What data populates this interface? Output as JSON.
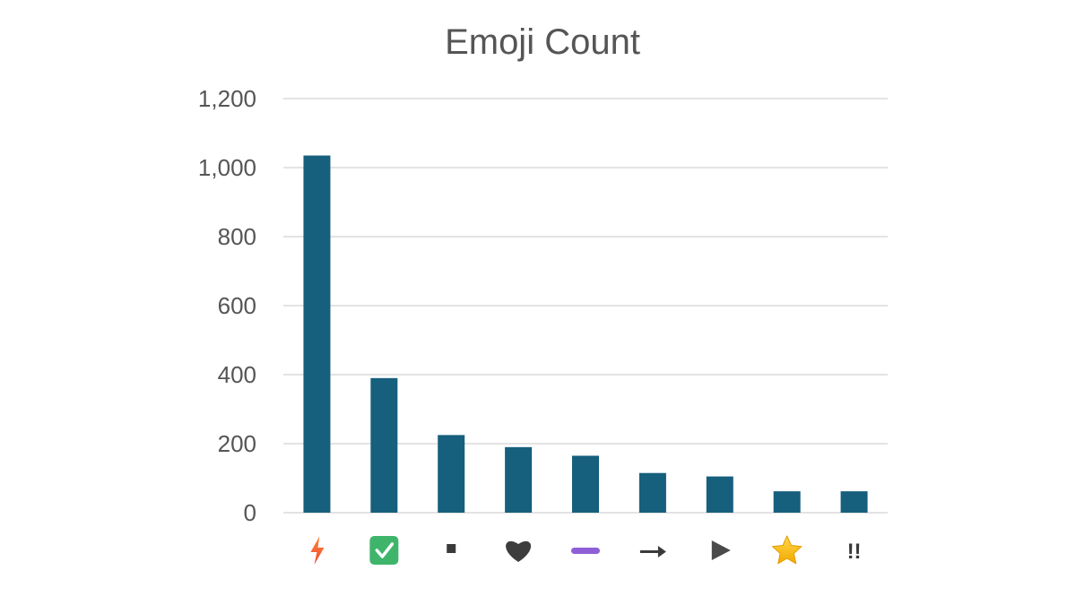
{
  "chart_data": {
    "type": "bar",
    "title": "Emoji Count",
    "xlabel": "",
    "ylabel": "",
    "ylim": [
      0,
      1200
    ],
    "yticks": [
      0,
      200,
      400,
      600,
      800,
      1000,
      1200
    ],
    "ytick_labels": [
      "0",
      "200",
      "400",
      "600",
      "800",
      "1,000",
      "1,200"
    ],
    "grid": true,
    "categories": [
      "⚡",
      "✅",
      "▪",
      "♥",
      "➖",
      "➡",
      "▶",
      "⭐",
      "‼"
    ],
    "category_icons": [
      "high-voltage-icon",
      "check-box-icon",
      "small-square-icon",
      "heart-icon",
      "minus-icon",
      "right-arrow-icon",
      "play-icon",
      "star-icon",
      "double-exclamation-icon"
    ],
    "values": [
      1035,
      390,
      225,
      190,
      165,
      115,
      105,
      62,
      62
    ],
    "bar_color": "#165f7d",
    "grid_color": "#e3e3e3",
    "text_color": "#555555"
  }
}
